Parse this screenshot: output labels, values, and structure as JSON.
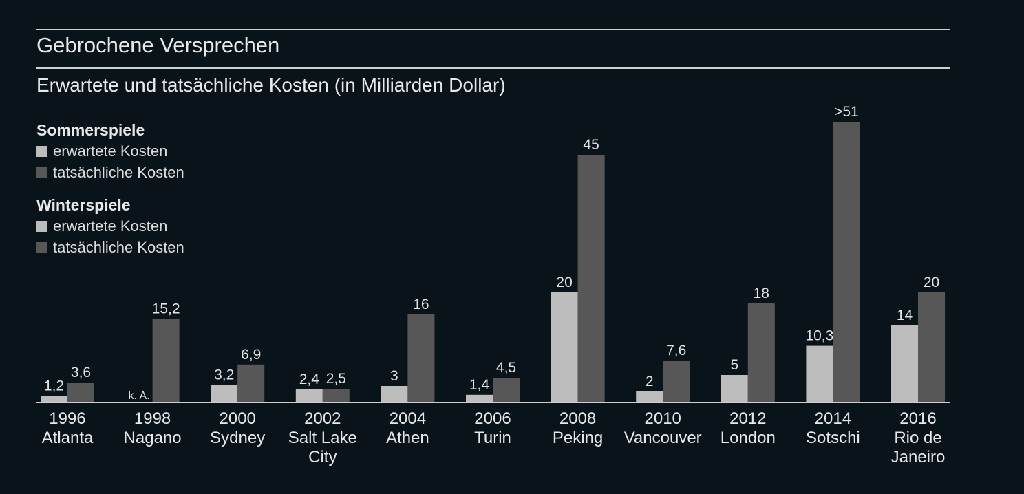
{
  "header": {
    "title": "Gebrochene Versprechen",
    "subtitle": "Erwartete und tatsächliche Kosten (in Milliarden Dollar)"
  },
  "legend": [
    {
      "heading": "Sommerspiele",
      "items": [
        "erwartete Kosten",
        "tatsächliche Kosten"
      ]
    },
    {
      "heading": "Winterspiele",
      "items": [
        "erwartete Kosten",
        "tatsächliche Kosten"
      ]
    }
  ],
  "colors": {
    "background": "#08141a",
    "expected": "#bdbdbd",
    "actual": "#575757",
    "rule": "#cfcfcf",
    "text": "#e4e4e4"
  },
  "chart_data": {
    "type": "bar",
    "title": "Gebrochene Versprechen",
    "subtitle": "Erwartete und tatsächliche Kosten (in Milliarden Dollar)",
    "categories": [
      [
        "1996",
        "Atlanta"
      ],
      [
        "1998",
        "Nagano"
      ],
      [
        "2000",
        "Sydney"
      ],
      [
        "2002",
        "Salt Lake",
        "City"
      ],
      [
        "2004",
        "Athen"
      ],
      [
        "2006",
        "Turin"
      ],
      [
        "2008",
        "Peking"
      ],
      [
        "2010",
        "Vancouver"
      ],
      [
        "2012",
        "London"
      ],
      [
        "2014",
        "Sotschi"
      ],
      [
        "2016",
        "Rio de",
        "Janeiro"
      ]
    ],
    "series": [
      {
        "name": "erwartete Kosten",
        "values": [
          1.2,
          null,
          3.2,
          2.4,
          3,
          1.4,
          20,
          2,
          5,
          10.3,
          14
        ],
        "labels": [
          "1,2",
          "k. A.",
          "3,2",
          "2,4",
          "3",
          "1,4",
          "20",
          "2",
          "5",
          "10,3",
          "14"
        ]
      },
      {
        "name": "tatsächliche Kosten",
        "values": [
          3.6,
          15.2,
          6.9,
          2.5,
          16,
          4.5,
          45,
          7.6,
          18,
          51,
          20
        ],
        "labels": [
          "3,6",
          "15,2",
          "6,9",
          "2,5",
          "16",
          "4,5",
          "45",
          "7,6",
          "18",
          ">51",
          "20"
        ]
      }
    ],
    "ylim": [
      0,
      51
    ],
    "grid": false,
    "legend_position": "top-left"
  }
}
